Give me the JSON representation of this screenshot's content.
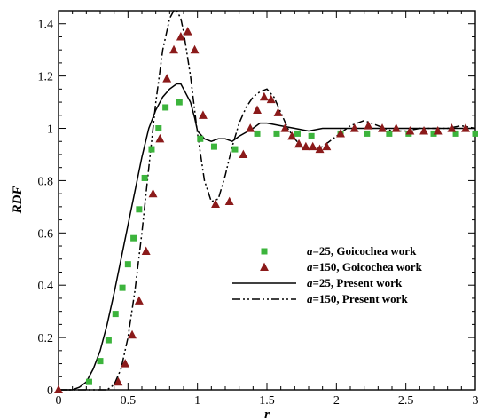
{
  "chart_data": {
    "type": "line",
    "xlabel": "r",
    "ylabel": "RDF",
    "xlim": [
      0,
      3
    ],
    "ylim": [
      0,
      1.45
    ],
    "x_ticks": [
      {
        "value": 0,
        "label": "0"
      },
      {
        "value": 0.5,
        "label": "0.5"
      },
      {
        "value": 1,
        "label": "1"
      },
      {
        "value": 1.5,
        "label": "1.5"
      },
      {
        "value": 2,
        "label": "2"
      },
      {
        "value": 2.5,
        "label": "2.5"
      },
      {
        "value": 3,
        "label": "3"
      }
    ],
    "y_ticks": [
      {
        "value": 0,
        "label": "0"
      },
      {
        "value": 0.2,
        "label": "0.2"
      },
      {
        "value": 0.4,
        "label": "0.4"
      },
      {
        "value": 0.6,
        "label": "0.6"
      },
      {
        "value": 0.8,
        "label": "0.8"
      },
      {
        "value": 1,
        "label": "1"
      },
      {
        "value": 1.2,
        "label": "1.2"
      },
      {
        "value": 1.4,
        "label": "1.4"
      }
    ],
    "legend_position": "center-right",
    "series": [
      {
        "name": "a=25, Goicochea work",
        "name_italic_part": "a",
        "name_rest": "=25, Goicochea work",
        "style": "markers",
        "marker": "square",
        "color": "#3cb43c",
        "x": [
          0.22,
          0.3,
          0.36,
          0.41,
          0.46,
          0.5,
          0.54,
          0.58,
          0.62,
          0.67,
          0.72,
          0.77,
          0.87,
          1.02,
          1.12,
          1.27,
          1.43,
          1.57,
          1.72,
          1.82,
          2.03,
          2.22,
          2.38,
          2.52,
          2.7,
          2.86,
          3.0
        ],
        "y": [
          0.03,
          0.11,
          0.19,
          0.29,
          0.39,
          0.48,
          0.58,
          0.69,
          0.81,
          0.92,
          1.0,
          1.08,
          1.1,
          0.96,
          0.93,
          0.92,
          0.98,
          0.98,
          0.98,
          0.97,
          0.98,
          0.98,
          0.98,
          0.98,
          0.98,
          0.98,
          0.98
        ]
      },
      {
        "name": "a=150, Goicochea work",
        "name_italic_part": "a",
        "name_rest": "=150, Goicochea work",
        "style": "markers",
        "marker": "triangle",
        "color": "#8b1a1a",
        "x": [
          0.0,
          0.43,
          0.48,
          0.53,
          0.58,
          0.63,
          0.68,
          0.73,
          0.78,
          0.83,
          0.88,
          0.93,
          0.98,
          1.04,
          1.13,
          1.23,
          1.33,
          1.38,
          1.43,
          1.48,
          1.53,
          1.58,
          1.63,
          1.68,
          1.73,
          1.78,
          1.83,
          1.88,
          1.93,
          2.03,
          2.13,
          2.23,
          2.33,
          2.43,
          2.53,
          2.63,
          2.73,
          2.83,
          2.93
        ],
        "y": [
          0.0,
          0.03,
          0.1,
          0.21,
          0.34,
          0.53,
          0.75,
          0.96,
          1.19,
          1.3,
          1.35,
          1.37,
          1.3,
          1.05,
          0.71,
          0.72,
          0.9,
          1.0,
          1.07,
          1.12,
          1.11,
          1.06,
          1.0,
          0.97,
          0.94,
          0.93,
          0.93,
          0.92,
          0.93,
          0.98,
          1.0,
          1.01,
          1.0,
          1.0,
          0.99,
          0.99,
          0.99,
          1.0,
          1.0
        ]
      },
      {
        "name": "a=25, Present work",
        "name_italic_part": "a",
        "name_rest": "=25, Present work",
        "style": "line",
        "dash": "solid",
        "color": "#000000",
        "x": [
          0.0,
          0.1,
          0.15,
          0.2,
          0.25,
          0.3,
          0.35,
          0.4,
          0.45,
          0.5,
          0.55,
          0.6,
          0.65,
          0.7,
          0.75,
          0.8,
          0.85,
          0.88,
          0.9,
          0.95,
          0.98,
          1.0,
          1.05,
          1.1,
          1.15,
          1.2,
          1.25,
          1.3,
          1.4,
          1.45,
          1.5,
          1.6,
          1.7,
          1.8,
          1.9,
          2.0,
          2.2,
          2.4,
          2.6,
          2.8,
          3.0
        ],
        "y": [
          0.0,
          0.0,
          0.01,
          0.03,
          0.08,
          0.15,
          0.25,
          0.37,
          0.5,
          0.63,
          0.76,
          0.89,
          1.0,
          1.07,
          1.12,
          1.15,
          1.17,
          1.17,
          1.15,
          1.1,
          1.04,
          0.99,
          0.96,
          0.95,
          0.96,
          0.96,
          0.95,
          0.97,
          1.0,
          1.02,
          1.02,
          1.01,
          1.0,
          0.99,
          1.0,
          1.0,
          1.0,
          1.0,
          1.0,
          1.0,
          1.0
        ]
      },
      {
        "name": "a=150, Present work",
        "name_italic_part": "a",
        "name_rest": "=150, Present work",
        "style": "line",
        "dash": "dash-dot",
        "color": "#000000",
        "x": [
          0.0,
          0.35,
          0.4,
          0.45,
          0.5,
          0.55,
          0.6,
          0.65,
          0.7,
          0.75,
          0.8,
          0.83,
          0.85,
          0.88,
          0.9,
          0.95,
          1.0,
          1.05,
          1.1,
          1.15,
          1.2,
          1.25,
          1.3,
          1.35,
          1.4,
          1.45,
          1.5,
          1.55,
          1.6,
          1.65,
          1.7,
          1.75,
          1.8,
          1.85,
          1.9,
          2.0,
          2.1,
          2.2,
          2.3,
          2.4,
          2.5,
          2.6,
          2.7,
          2.8,
          2.9,
          3.0
        ],
        "y": [
          0.0,
          0.0,
          0.02,
          0.08,
          0.2,
          0.38,
          0.6,
          0.85,
          1.1,
          1.3,
          1.42,
          1.45,
          1.45,
          1.42,
          1.37,
          1.2,
          0.98,
          0.8,
          0.72,
          0.73,
          0.82,
          0.93,
          1.02,
          1.08,
          1.12,
          1.14,
          1.15,
          1.12,
          1.06,
          1.0,
          0.96,
          0.93,
          0.92,
          0.92,
          0.93,
          0.97,
          1.01,
          1.03,
          1.01,
          0.99,
          0.99,
          1.0,
          1.0,
          1.0,
          1.01,
          1.0
        ]
      }
    ]
  }
}
